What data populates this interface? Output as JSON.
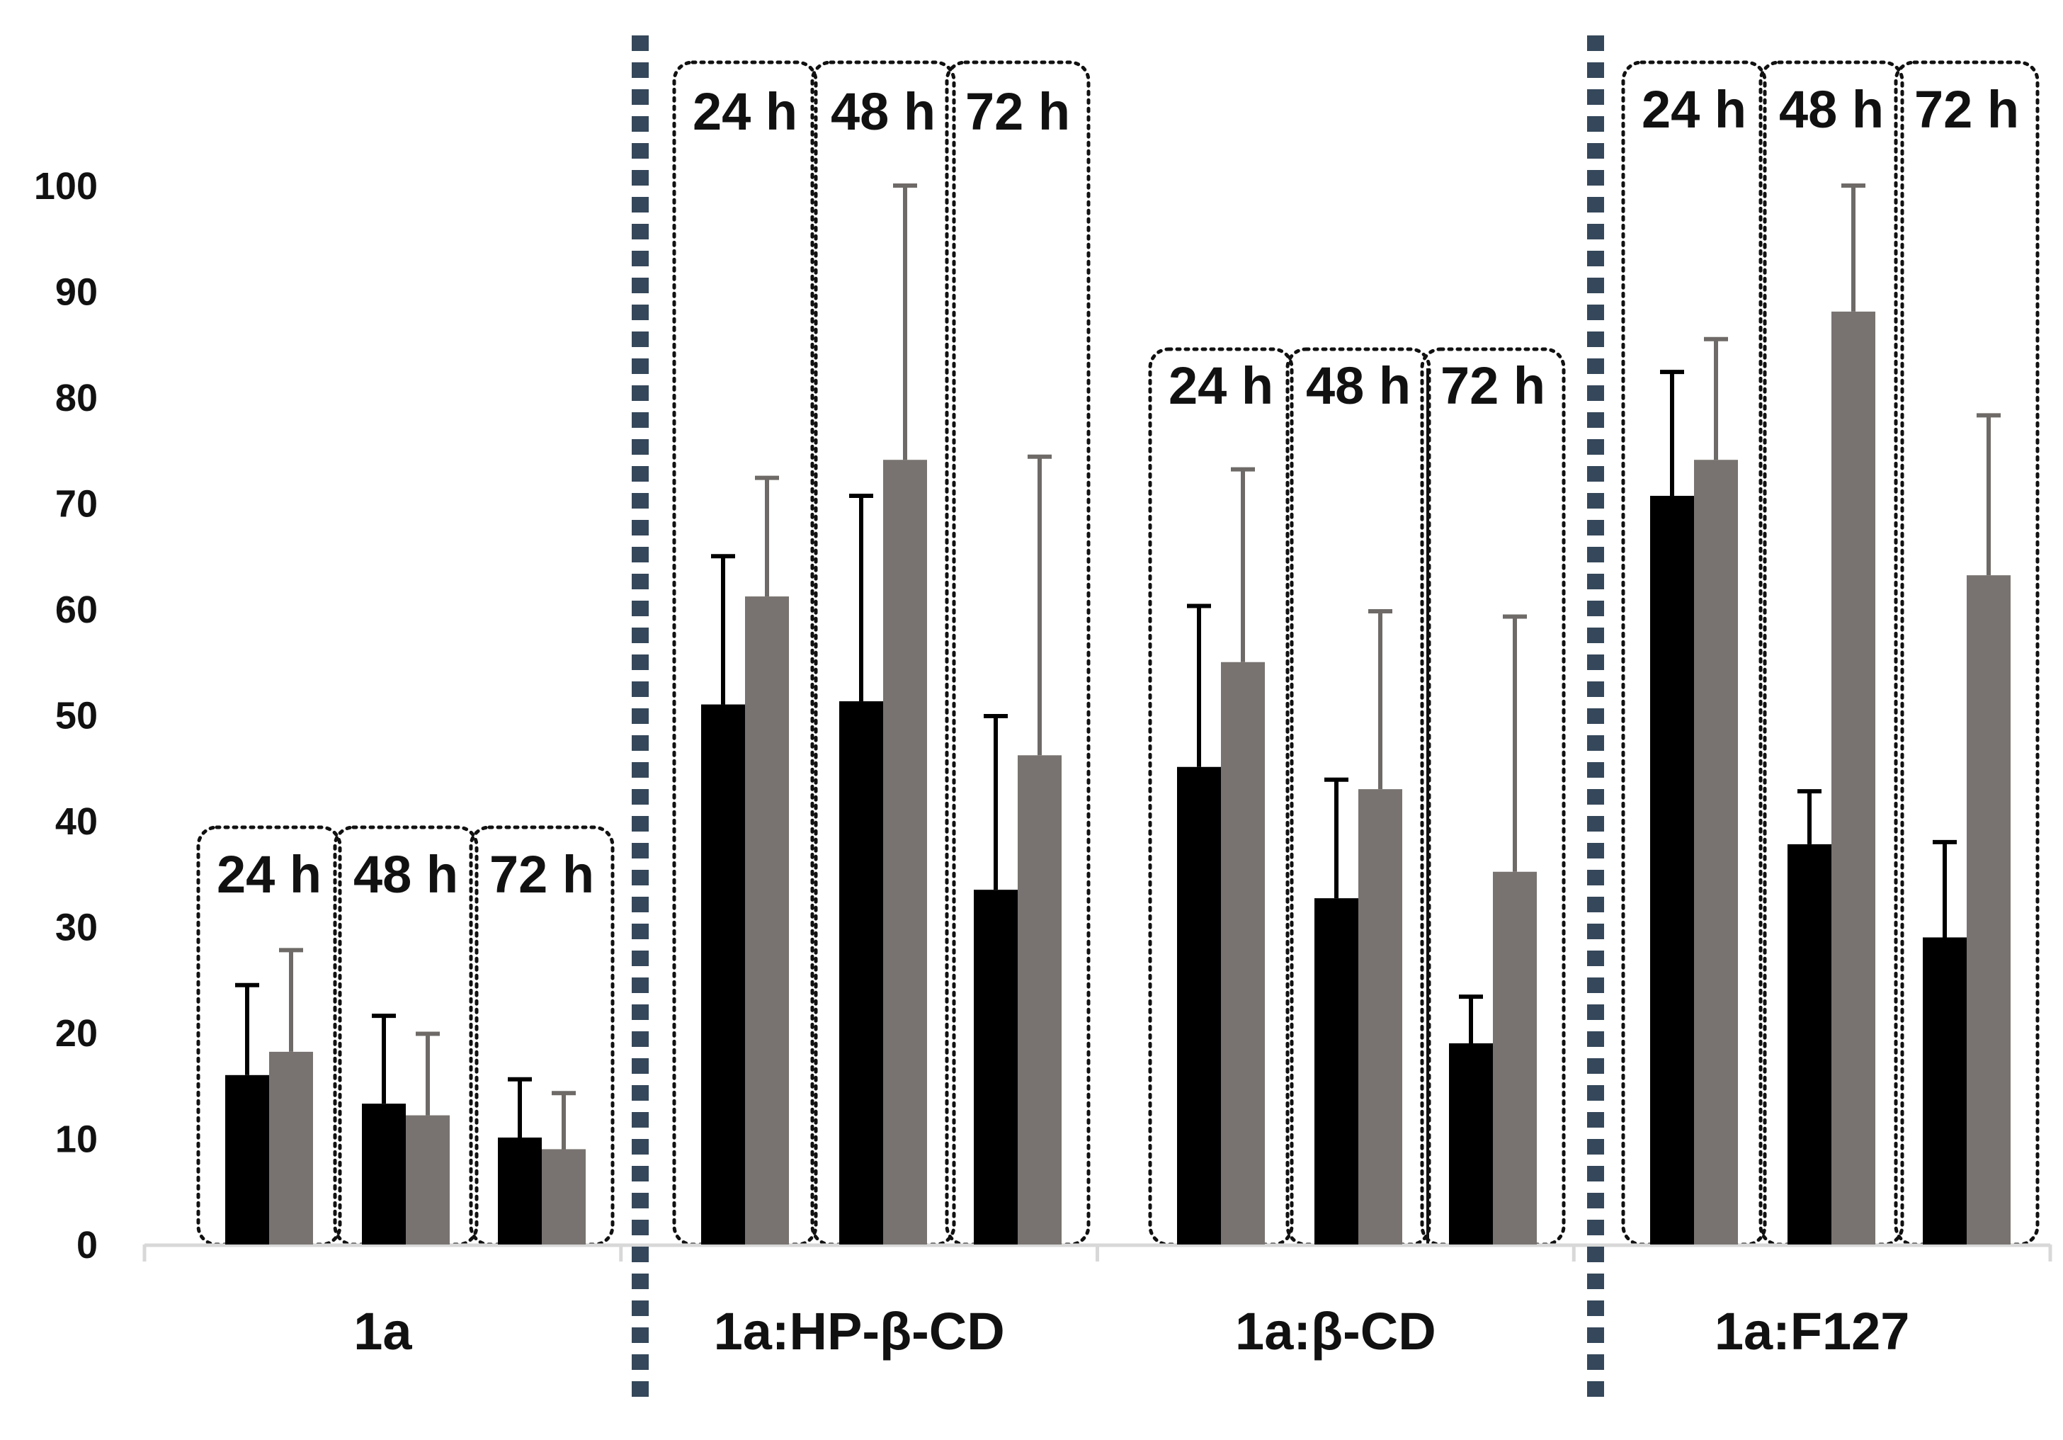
{
  "chart_data": {
    "type": "bar",
    "title": "",
    "xlabel": "",
    "ylabel": "",
    "ylim": [
      0,
      100
    ],
    "yticks": [
      "0",
      "10",
      "20",
      "30",
      "40",
      "50",
      "60",
      "70",
      "80",
      "90",
      "100"
    ],
    "grid": false,
    "legend": "none",
    "colors": {
      "series_a": "#000000",
      "series_b": "#787370",
      "error_b": "#6e6a67",
      "divider": "#35475a",
      "axis": "#d8d8d8"
    },
    "time_points": [
      "24 h",
      "48 h",
      "72 h"
    ],
    "groups": [
      {
        "name": "1a",
        "values_a": [
          16,
          13.3,
          10.1
        ],
        "errors_a": [
          8.5,
          8.3,
          5.5
        ],
        "values_b": [
          18.2,
          12.2,
          9
        ],
        "errors_b": [
          9.6,
          7.7,
          5.3
        ]
      },
      {
        "name": "1a:HP-β-CD",
        "values_a": [
          51,
          51.3,
          33.5
        ],
        "errors_a": [
          14,
          19.4,
          16.4
        ],
        "values_b": [
          61.2,
          74.1,
          46.2
        ],
        "errors_b": [
          11.2,
          25.9,
          28.2
        ]
      },
      {
        "name": "1a:β-CD",
        "values_a": [
          45.1,
          32.7,
          19
        ],
        "errors_a": [
          15.2,
          11.2,
          4.4
        ],
        "values_b": [
          55,
          43,
          35.2
        ],
        "errors_b": [
          18.2,
          16.8,
          24.1
        ]
      },
      {
        "name": "1a:F127",
        "values_a": [
          70.7,
          37.8,
          29
        ],
        "errors_a": [
          11.7,
          5,
          9
        ],
        "values_b": [
          74.1,
          88.1,
          63.2
        ],
        "errors_b": [
          11.4,
          11.9,
          15.1
        ]
      }
    ]
  }
}
